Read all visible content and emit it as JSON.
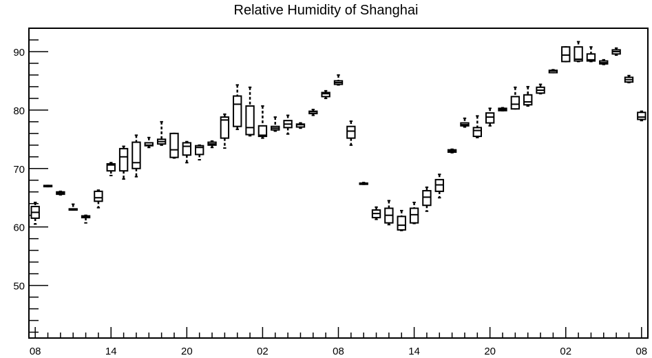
{
  "chart_data": {
    "type": "box",
    "title": "Relative Humidity of Shanghai",
    "xlabel": "",
    "ylabel": "",
    "ylim": [
      41,
      94
    ],
    "yticks": [
      50,
      60,
      70,
      80,
      90
    ],
    "x_range_hours": [
      -0.5,
      48.5
    ],
    "x_tick_labels": [
      {
        "index": 0,
        "label": "08"
      },
      {
        "index": 6,
        "label": "14"
      },
      {
        "index": 12,
        "label": "20"
      },
      {
        "index": 18,
        "label": "02"
      },
      {
        "index": 24,
        "label": "08"
      },
      {
        "index": 30,
        "label": "14"
      },
      {
        "index": 36,
        "label": "20"
      },
      {
        "index": 42,
        "label": "02"
      },
      {
        "index": 48,
        "label": "08"
      }
    ],
    "grid": false,
    "boxes": [
      {
        "x": 0,
        "min": 60.5,
        "q1": 61.5,
        "median": 62.5,
        "q3": 63.5,
        "max": 64.2
      },
      {
        "x": 1,
        "min": 66.9,
        "q1": 66.9,
        "median": 67.0,
        "q3": 67.1,
        "max": 67.1
      },
      {
        "x": 2,
        "min": 65.5,
        "q1": 65.6,
        "median": 65.8,
        "q3": 66.0,
        "max": 66.1
      },
      {
        "x": 3,
        "min": 62.9,
        "q1": 62.9,
        "median": 63.0,
        "q3": 63.1,
        "max": 63.9
      },
      {
        "x": 4,
        "min": 60.7,
        "q1": 61.6,
        "median": 61.7,
        "q3": 61.9,
        "max": 62.0
      },
      {
        "x": 5,
        "min": 63.3,
        "q1": 64.4,
        "median": 65.0,
        "q3": 66.1,
        "max": 66.3
      },
      {
        "x": 6,
        "min": 68.8,
        "q1": 69.6,
        "median": 70.6,
        "q3": 70.8,
        "max": 71.0
      },
      {
        "x": 7,
        "min": 68.2,
        "q1": 69.6,
        "median": 72.0,
        "q3": 73.4,
        "max": 73.8
      },
      {
        "x": 8,
        "min": 68.6,
        "q1": 70.0,
        "median": 71.0,
        "q3": 74.5,
        "max": 75.7
      },
      {
        "x": 9,
        "min": 73.6,
        "q1": 73.9,
        "median": 74.0,
        "q3": 74.4,
        "max": 75.3
      },
      {
        "x": 10,
        "min": 74.0,
        "q1": 74.2,
        "median": 74.6,
        "q3": 75.0,
        "max": 78.0
      },
      {
        "x": 11,
        "min": 71.8,
        "q1": 71.9,
        "median": 73.2,
        "q3": 76.0,
        "max": 76.0
      },
      {
        "x": 12,
        "min": 71.0,
        "q1": 72.3,
        "median": 73.8,
        "q3": 74.4,
        "max": 74.6
      },
      {
        "x": 13,
        "min": 71.5,
        "q1": 72.4,
        "median": 73.6,
        "q3": 73.9,
        "max": 74.0
      },
      {
        "x": 14,
        "min": 73.6,
        "q1": 74.0,
        "median": 74.2,
        "q3": 74.5,
        "max": 74.7
      },
      {
        "x": 15,
        "min": 73.5,
        "q1": 75.2,
        "median": 78.3,
        "q3": 78.8,
        "max": 79.3
      },
      {
        "x": 16,
        "min": 76.7,
        "q1": 77.2,
        "median": 81.0,
        "q3": 82.4,
        "max": 84.3
      },
      {
        "x": 17,
        "min": 75.6,
        "q1": 75.8,
        "median": 77.0,
        "q3": 80.7,
        "max": 83.9
      },
      {
        "x": 18,
        "min": 75.2,
        "q1": 75.5,
        "median": 75.7,
        "q3": 77.3,
        "max": 80.7
      },
      {
        "x": 19,
        "min": 76.4,
        "q1": 76.6,
        "median": 76.9,
        "q3": 77.2,
        "max": 78.8
      },
      {
        "x": 20,
        "min": 75.9,
        "q1": 77.0,
        "median": 77.6,
        "q3": 78.2,
        "max": 79.1
      },
      {
        "x": 21,
        "min": 76.9,
        "q1": 77.1,
        "median": 77.5,
        "q3": 77.6,
        "max": 77.8
      },
      {
        "x": 22,
        "min": 79.1,
        "q1": 79.4,
        "median": 79.7,
        "q3": 79.8,
        "max": 80.1
      },
      {
        "x": 23,
        "min": 82.0,
        "q1": 82.3,
        "median": 82.8,
        "q3": 83.0,
        "max": 83.3
      },
      {
        "x": 24,
        "min": 84.3,
        "q1": 84.4,
        "median": 84.7,
        "q3": 85.0,
        "max": 86.0
      },
      {
        "x": 25,
        "min": 74.0,
        "q1": 75.2,
        "median": 76.4,
        "q3": 77.2,
        "max": 78.1
      },
      {
        "x": 26,
        "min": 67.3,
        "q1": 67.3,
        "median": 67.4,
        "q3": 67.5,
        "max": 67.6
      },
      {
        "x": 27,
        "min": 61.3,
        "q1": 61.6,
        "median": 62.3,
        "q3": 62.9,
        "max": 63.4
      },
      {
        "x": 28,
        "min": 60.4,
        "q1": 60.7,
        "median": 62.0,
        "q3": 63.2,
        "max": 64.5
      },
      {
        "x": 29,
        "min": 59.4,
        "q1": 59.5,
        "median": 60.3,
        "q3": 61.8,
        "max": 62.8
      },
      {
        "x": 30,
        "min": 60.6,
        "q1": 60.7,
        "median": 62.1,
        "q3": 63.2,
        "max": 64.2
      },
      {
        "x": 31,
        "min": 62.7,
        "q1": 63.7,
        "median": 65.1,
        "q3": 66.2,
        "max": 66.8
      },
      {
        "x": 32,
        "min": 65.0,
        "q1": 66.1,
        "median": 67.2,
        "q3": 68.1,
        "max": 69.0
      },
      {
        "x": 33,
        "min": 72.7,
        "q1": 72.8,
        "median": 73.0,
        "q3": 73.2,
        "max": 73.3
      },
      {
        "x": 34,
        "min": 77.1,
        "q1": 77.3,
        "median": 77.5,
        "q3": 77.8,
        "max": 78.6
      },
      {
        "x": 35,
        "min": 75.3,
        "q1": 75.5,
        "median": 76.5,
        "q3": 77.0,
        "max": 79.0
      },
      {
        "x": 36,
        "min": 77.3,
        "q1": 77.8,
        "median": 78.8,
        "q3": 79.5,
        "max": 80.3
      },
      {
        "x": 37,
        "min": 79.9,
        "q1": 79.9,
        "median": 80.1,
        "q3": 80.3,
        "max": 80.4
      },
      {
        "x": 38,
        "min": 80.2,
        "q1": 80.2,
        "median": 81.0,
        "q3": 82.3,
        "max": 83.9
      },
      {
        "x": 39,
        "min": 80.7,
        "q1": 80.9,
        "median": 81.4,
        "q3": 82.6,
        "max": 84.0
      },
      {
        "x": 40,
        "min": 82.8,
        "q1": 82.9,
        "median": 83.4,
        "q3": 83.9,
        "max": 84.4
      },
      {
        "x": 41,
        "min": 86.4,
        "q1": 86.4,
        "median": 86.7,
        "q3": 86.8,
        "max": 86.9
      },
      {
        "x": 42,
        "min": 88.3,
        "q1": 88.3,
        "median": 89.4,
        "q3": 90.8,
        "max": 90.8
      },
      {
        "x": 43,
        "min": 88.3,
        "q1": 88.4,
        "median": 88.7,
        "q3": 90.8,
        "max": 91.7
      },
      {
        "x": 44,
        "min": 88.3,
        "q1": 88.4,
        "median": 88.6,
        "q3": 89.6,
        "max": 90.8
      },
      {
        "x": 45,
        "min": 87.8,
        "q1": 87.9,
        "median": 88.1,
        "q3": 88.4,
        "max": 88.6
      },
      {
        "x": 46,
        "min": 89.4,
        "q1": 89.6,
        "median": 90.0,
        "q3": 90.3,
        "max": 90.6
      },
      {
        "x": 47,
        "min": 84.7,
        "q1": 84.8,
        "median": 85.2,
        "q3": 85.6,
        "max": 85.9
      },
      {
        "x": 48,
        "min": 78.2,
        "q1": 78.4,
        "median": 78.8,
        "q3": 79.6,
        "max": 79.8
      }
    ]
  }
}
